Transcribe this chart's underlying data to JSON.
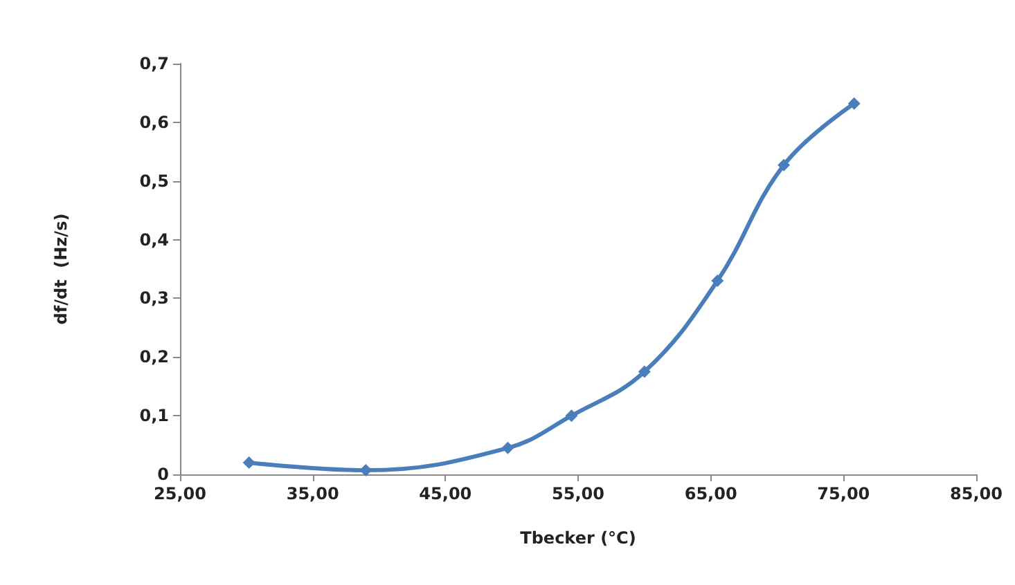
{
  "chart_data": {
    "type": "line",
    "xlabel": "Tbecker (°C)",
    "ylabel": "df/dt  (Hz/s)",
    "x": [
      30.2,
      39,
      49.7,
      54.5,
      60,
      65.5,
      70.5,
      75.8
    ],
    "series": [
      {
        "color": "#4a7ebb",
        "values": [
          0.02,
          0.007,
          0.045,
          0.1,
          0.175,
          0.33,
          0.527,
          0.632
        ]
      }
    ],
    "xlim": [
      25,
      85
    ],
    "xticks": [
      {
        "value": 25,
        "label": "25,00"
      },
      {
        "value": 35,
        "label": "35,00"
      },
      {
        "value": 45,
        "label": "45,00"
      },
      {
        "value": 55,
        "label": "55,00"
      },
      {
        "value": 65,
        "label": "65,00"
      },
      {
        "value": 75,
        "label": "75,00"
      },
      {
        "value": 85,
        "label": "85,00"
      }
    ],
    "ylim": [
      0,
      0.7
    ],
    "yticks": [
      0,
      {
        "value": 0.1,
        "label": "0,1"
      },
      {
        "value": 0.2,
        "label": "0,2"
      },
      {
        "value": 0.3,
        "label": "0,3"
      },
      {
        "value": 0.4,
        "label": "0,4"
      },
      {
        "value": 0.5,
        "label": "0,5"
      },
      {
        "value": 0.6,
        "label": "0,6"
      },
      {
        "value": 0.7,
        "label": "0,7"
      }
    ],
    "grid": false,
    "marker": "diamond",
    "line_style": "solid"
  }
}
